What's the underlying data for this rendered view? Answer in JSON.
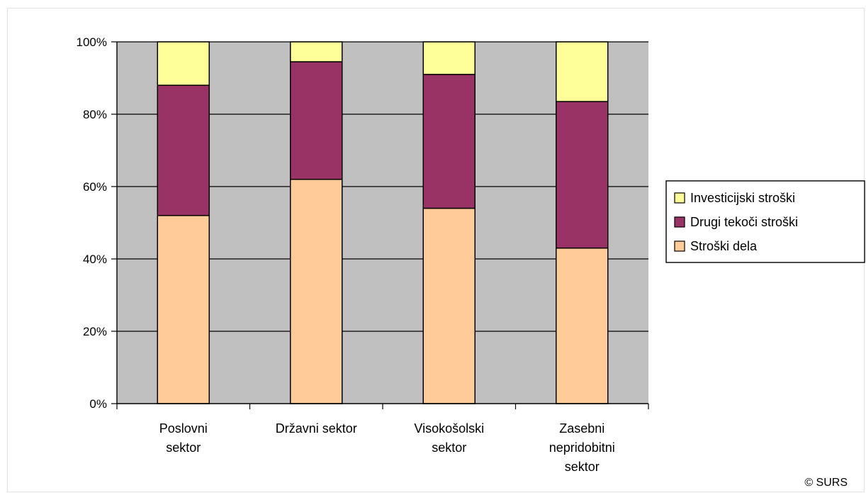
{
  "chart_data": {
    "type": "bar",
    "stacked": true,
    "percent": true,
    "categories": [
      [
        "Poslovni",
        "sektor"
      ],
      [
        "Državni sektor"
      ],
      [
        "Visokošolski",
        "sektor"
      ],
      [
        "Zasebni",
        "nepridobitni",
        "sektor"
      ]
    ],
    "series": [
      {
        "name": "Stroški dela",
        "color": "#FFCC99",
        "values": [
          52,
          62,
          54,
          43
        ]
      },
      {
        "name": "Drugi tekoči stroški",
        "color": "#993366",
        "values": [
          36,
          32.5,
          37,
          40.5
        ]
      },
      {
        "name": "Investicijski stroški",
        "color": "#FFFF99",
        "values": [
          12,
          5.5,
          9,
          16.5
        ]
      }
    ],
    "ylim": [
      0,
      100
    ],
    "yticks": [
      "0%",
      "20%",
      "40%",
      "60%",
      "80%",
      "100%"
    ],
    "grid": true,
    "plot_background": "#C0C0C0",
    "legend": {
      "placement": "right",
      "order": [
        "Investicijski stroški",
        "Drugi tekoči stroški",
        "Stroški dela"
      ]
    },
    "xlabel": "",
    "ylabel": "",
    "title": ""
  },
  "credit": "© SURS"
}
